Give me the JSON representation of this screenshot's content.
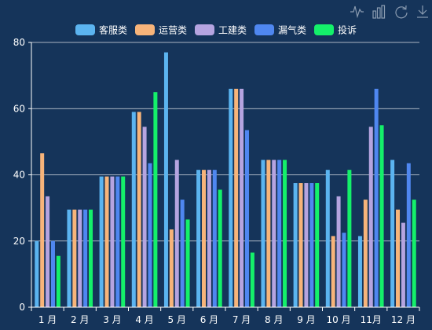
{
  "chart_data": {
    "type": "bar",
    "categories": [
      "1 月",
      "2 月",
      "3 月",
      "4 月",
      "5 月",
      "6 月",
      "7 月",
      "8 月",
      "9 月",
      "10 月",
      "11月",
      "12 月"
    ],
    "series": [
      {
        "name": "客服类",
        "color": "#5bb4f0",
        "values": [
          20,
          29.5,
          39.5,
          59,
          77,
          41.5,
          66,
          44.5,
          37.5,
          41.5,
          21.5,
          44.5
        ]
      },
      {
        "name": "运营类",
        "color": "#f7b47a",
        "values": [
          46.5,
          29.5,
          39.5,
          59,
          23.5,
          41.5,
          66,
          44.5,
          37.5,
          21.5,
          32.5,
          29.5
        ]
      },
      {
        "name": "工建类",
        "color": "#b5a4e0",
        "values": [
          33.5,
          29.5,
          39.5,
          54.5,
          44.5,
          41.5,
          66,
          44.5,
          37.5,
          33.5,
          54.5,
          25.5
        ]
      },
      {
        "name": "漏气类",
        "color": "#4f87f0",
        "values": [
          20,
          29.5,
          39.5,
          43.5,
          32.5,
          41.5,
          53.5,
          44.5,
          37.5,
          22.5,
          66,
          43.5
        ]
      },
      {
        "name": "投诉",
        "color": "#14f06a",
        "values": [
          15.5,
          29.5,
          39.5,
          65,
          26.5,
          35.5,
          16.5,
          44.5,
          37.5,
          41.5,
          55,
          32.5
        ]
      }
    ],
    "title": "",
    "xlabel": "",
    "ylabel": "",
    "ylim": [
      0,
      80
    ],
    "yticks": [
      0,
      20,
      40,
      60,
      80
    ],
    "grid": true,
    "legend_position": "top-center"
  },
  "toolbox": {
    "icons": [
      "line-chart-icon",
      "bar-chart-icon",
      "restore-icon",
      "download-icon"
    ]
  },
  "colors": {
    "background": "#15345a",
    "gridline": "#ffffff",
    "axis": "#ffffff",
    "toolbox": "#8a9bb0"
  }
}
